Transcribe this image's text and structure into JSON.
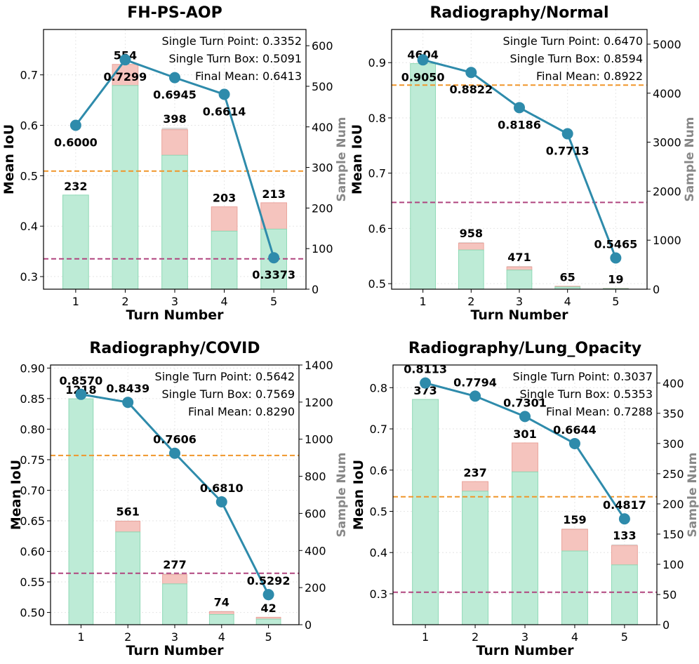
{
  "chart_data": [
    {
      "type": "bar+line",
      "title": "FH-PS-AOP",
      "xlabel": "Turn Number",
      "ylabel": "Mean IoU",
      "ylabel_right": "Sample Num",
      "categories": [
        "1",
        "2",
        "3",
        "4",
        "5"
      ],
      "ylim": [
        0.275,
        0.79
      ],
      "yticks": [
        0.3,
        0.4,
        0.5,
        0.6,
        0.7
      ],
      "ytick_labels": [
        "0.3",
        "0.4",
        "0.5",
        "0.6",
        "0.7"
      ],
      "ylim_right": [
        0,
        640
      ],
      "yticks_right": [
        0,
        100,
        200,
        300,
        400,
        500,
        600
      ],
      "mean_iou": [
        0.6,
        0.7299,
        0.6945,
        0.6614,
        0.3373
      ],
      "mean_iou_labels": [
        "0.6000",
        "0.7299",
        "0.6945",
        "0.6614",
        "0.3373"
      ],
      "sample_num": [
        232,
        554,
        398,
        203,
        213
      ],
      "sample_labels": [
        "232",
        "554",
        "398",
        "203",
        "213"
      ],
      "sample_success": [
        232,
        502,
        330,
        143,
        148
      ],
      "sample_fail": [
        0,
        52,
        63,
        60,
        65
      ],
      "single_turn_point": 0.3352,
      "single_turn_box": 0.5091,
      "final_mean": 0.6413,
      "legend": [
        "Single Turn Point: 0.3352",
        "Single Turn Box: 0.5091",
        "Final Mean: 0.6413"
      ]
    },
    {
      "type": "bar+line",
      "title": "Radiography/Normal",
      "xlabel": "Turn Number",
      "ylabel": "Mean IoU",
      "ylabel_right": "Sample Num",
      "categories": [
        "1",
        "2",
        "3",
        "4",
        "5"
      ],
      "ylim": [
        0.49,
        0.96
      ],
      "yticks": [
        0.5,
        0.6,
        0.7,
        0.8,
        0.9
      ],
      "ytick_labels": [
        "0.5",
        "0.6",
        "0.7",
        "0.8",
        "0.9"
      ],
      "ylim_right": [
        0,
        5300
      ],
      "yticks_right": [
        0,
        1000,
        2000,
        3000,
        4000,
        5000
      ],
      "mean_iou": [
        0.905,
        0.8822,
        0.8186,
        0.7713,
        0.5465
      ],
      "mean_iou_labels": [
        "0.9050",
        "0.8822",
        "0.8186",
        "0.7713",
        "0.5465"
      ],
      "sample_num": [
        4604,
        958,
        471,
        65,
        19
      ],
      "sample_labels": [
        "4604",
        "958",
        "471",
        "65",
        "19"
      ],
      "sample_success": [
        4604,
        800,
        390,
        45,
        12
      ],
      "sample_fail": [
        0,
        140,
        65,
        15,
        5
      ],
      "single_turn_point": 0.647,
      "single_turn_box": 0.8594,
      "final_mean": 0.8922,
      "legend": [
        "Single Turn Point: 0.6470",
        "Single Turn Box: 0.8594",
        "Final Mean: 0.8922"
      ]
    },
    {
      "type": "bar+line",
      "title": "Radiography/COVID",
      "xlabel": "Turn Number",
      "ylabel": "Mean IoU",
      "ylabel_right": "Sample Num",
      "categories": [
        "1",
        "2",
        "3",
        "4",
        "5"
      ],
      "ylim": [
        0.48,
        0.905
      ],
      "yticks": [
        0.5,
        0.55,
        0.6,
        0.65,
        0.7,
        0.75,
        0.8,
        0.85,
        0.9
      ],
      "ytick_labels": [
        "0.50",
        "0.55",
        "0.60",
        "0.65",
        "0.70",
        "0.75",
        "0.80",
        "0.85",
        "0.90"
      ],
      "ylim_right": [
        0,
        1400
      ],
      "yticks_right": [
        0,
        200,
        400,
        600,
        800,
        1000,
        1200,
        1400
      ],
      "mean_iou": [
        0.857,
        0.8439,
        0.7606,
        0.681,
        0.5292
      ],
      "mean_iou_labels": [
        "0.8570",
        "0.8439",
        "0.7606",
        "0.6810",
        "0.5292"
      ],
      "sample_num": [
        1218,
        561,
        277,
        74,
        42
      ],
      "sample_labels": [
        "1218",
        "561",
        "277",
        "74",
        "42"
      ],
      "sample_success": [
        1218,
        500,
        220,
        55,
        30
      ],
      "sample_fail": [
        0,
        58,
        50,
        15,
        10
      ],
      "single_turn_point": 0.5642,
      "single_turn_box": 0.7569,
      "final_mean": 0.829,
      "legend": [
        "Single Turn Point: 0.5642",
        "Single Turn Box: 0.7569",
        "Final Mean: 0.8290"
      ]
    },
    {
      "type": "bar+line",
      "title": "Radiography/Lung_Opacity",
      "xlabel": "Turn Number",
      "ylabel": "Mean IoU",
      "ylabel_right": "Sample Num",
      "categories": [
        "1",
        "2",
        "3",
        "4",
        "5"
      ],
      "ylim": [
        0.225,
        0.855
      ],
      "yticks": [
        0.3,
        0.4,
        0.5,
        0.6,
        0.7,
        0.8
      ],
      "ytick_labels": [
        "0.3",
        "0.4",
        "0.5",
        "0.6",
        "0.7",
        "0.8"
      ],
      "ylim_right": [
        0,
        430
      ],
      "yticks_right": [
        0,
        50,
        100,
        150,
        200,
        250,
        300,
        350,
        400
      ],
      "mean_iou": [
        0.8113,
        0.7794,
        0.7301,
        0.6644,
        0.4817
      ],
      "mean_iou_labels": [
        "0.8113",
        "0.7794",
        "0.7301",
        "0.6644",
        "0.4817"
      ],
      "sample_num": [
        373,
        237,
        301,
        159,
        133
      ],
      "sample_labels": [
        "373",
        "237",
        "301",
        "159",
        "133"
      ],
      "sample_success": [
        373,
        221,
        253,
        122,
        99
      ],
      "sample_fail": [
        0,
        16,
        48,
        36,
        32
      ],
      "single_turn_point": 0.3037,
      "single_turn_box": 0.5353,
      "final_mean": 0.7288,
      "legend": [
        "Single Turn Point: 0.3037",
        "Single Turn Box: 0.5353",
        "Final Mean: 0.7288"
      ]
    }
  ],
  "colors": {
    "line": "#2e8bab",
    "bar_success": "#bdebd6",
    "bar_success_edge": "#8fd9b6",
    "bar_fail": "#f5c4be",
    "bar_top": "#d6d6d6",
    "single_turn_point": "#b0457f",
    "single_turn_box": "#f0962a",
    "grid": "#e6e6e6"
  }
}
